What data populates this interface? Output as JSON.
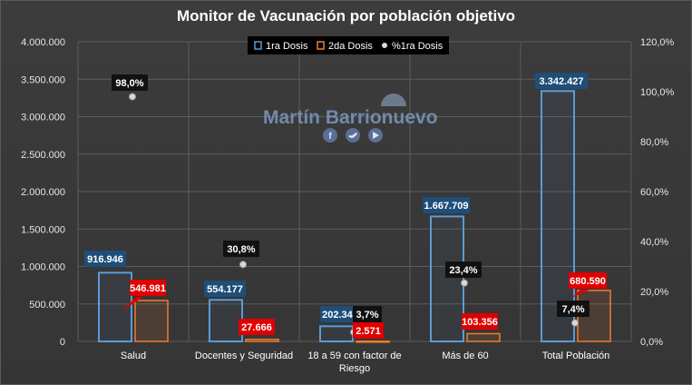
{
  "chart_data": {
    "type": "bar",
    "title": "Monitor de Vacunación por población objetivo",
    "categories": [
      "Salud",
      "Docentes y Seguridad",
      "18 a 59 con factor de Riesgo",
      "Más de 60",
      "Total Población"
    ],
    "series": [
      {
        "name": "1ra Dosis",
        "axis": "left",
        "color": "#5b9bd5",
        "values": [
          916946,
          554177,
          202343,
          1667709,
          3342427
        ],
        "labels": [
          "916.946",
          "554.177",
          "202.343",
          "1.667.709",
          "3.342.427"
        ]
      },
      {
        "name": "2da Dosis",
        "axis": "left",
        "color": "#ed7d31",
        "values": [
          546981,
          27666,
          2571,
          103356,
          680590
        ],
        "labels": [
          "546.981",
          "27.666",
          "2.571",
          "103.356",
          "680.590"
        ]
      },
      {
        "name": "%1ra Dosis",
        "axis": "right",
        "type": "scatter",
        "color": "#d9d9d9",
        "values": [
          98.0,
          30.8,
          3.7,
          23.4,
          7.4
        ],
        "labels": [
          "98,0%",
          "30,8%",
          "3,7%",
          "23,4%",
          "7,4%"
        ]
      }
    ],
    "ylim": [
      0,
      4000000
    ],
    "y_ticks": [
      "0",
      "500.000",
      "1.000.000",
      "1.500.000",
      "2.000.000",
      "2.500.000",
      "3.000.000",
      "3.500.000",
      "4.000.000"
    ],
    "y2lim": [
      0,
      120
    ],
    "y2_ticks": [
      "0,0%",
      "20,0%",
      "40,0%",
      "60,0%",
      "80,0%",
      "100,0%",
      "120,0%"
    ],
    "grid": true,
    "legend_position": "top-center"
  },
  "watermark": {
    "text": "Martín Barrionuevo",
    "icons": [
      "facebook-icon",
      "twitter-icon",
      "youtube-icon"
    ]
  }
}
